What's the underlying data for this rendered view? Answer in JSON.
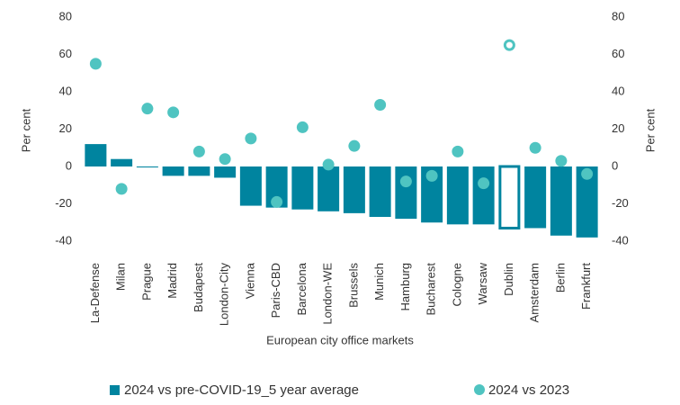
{
  "chart_data": {
    "type": "bar_scatter",
    "x_label": "European city office markets",
    "y_label": "Per cent",
    "y2_label": "Per cent",
    "categories": [
      "La-Defense",
      "Milan",
      "Prague",
      "Madrid",
      "Budapest",
      "London-City",
      "Vienna",
      "Paris-CBD",
      "Barcelona",
      "London-WE",
      "Brussels",
      "Munich",
      "Hamburg",
      "Bucharest",
      "Cologne",
      "Warsaw",
      "Dublin",
      "Amsterdam",
      "Berlin",
      "Frankfurt"
    ],
    "series": [
      {
        "name": "2024 vs pre-COVID-19_5 year average",
        "type": "bar",
        "color": "#00849f",
        "values": [
          12,
          4,
          -0.5,
          -5,
          -5,
          -6,
          -21,
          -22,
          -23,
          -24,
          -25,
          -27,
          -28,
          -30,
          -31,
          -31,
          -33,
          -33,
          -37,
          -38
        ]
      },
      {
        "name": "2024 vs 2023",
        "type": "scatter",
        "color": "#4fc4c1",
        "values": [
          55,
          -12,
          31,
          29,
          8,
          4,
          15,
          -19,
          21,
          1,
          11,
          33,
          -8,
          -5,
          8,
          -9,
          65,
          10,
          3,
          -4
        ]
      }
    ],
    "highlight": "Dublin",
    "ylim": [
      -40,
      80
    ],
    "yticks": [
      -40,
      -20,
      0,
      20,
      40,
      60,
      80
    ],
    "y2lim": [
      -40,
      80
    ],
    "y2ticks": [
      -40,
      -20,
      0,
      20,
      40,
      60,
      80
    ],
    "grid": false
  }
}
